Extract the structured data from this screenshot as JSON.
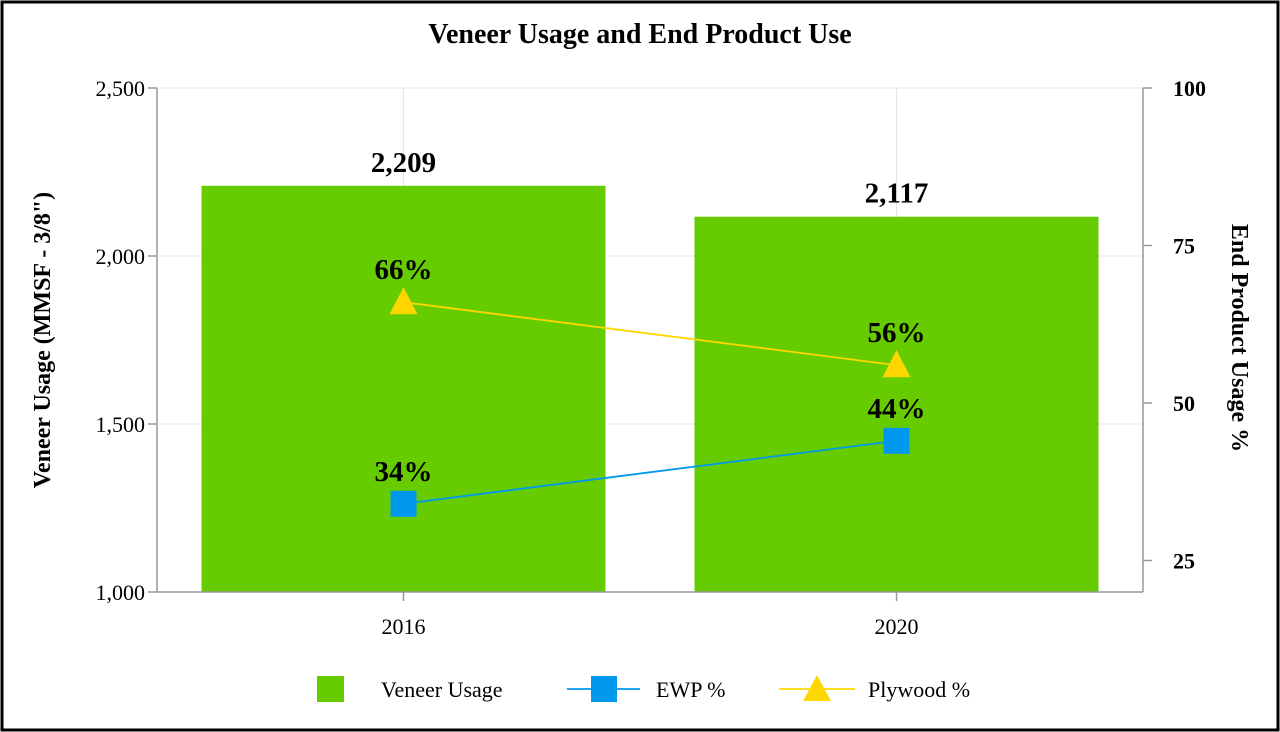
{
  "chart_data": {
    "type": "bar",
    "title": "Veneer Usage and End Product Use",
    "categories": [
      "2016",
      "2020"
    ],
    "y_left": {
      "label": "Veneer Usage (MMSF - 3/8\")",
      "range": [
        1000,
        2500
      ],
      "ticks": [
        1000,
        1500,
        2000,
        2500
      ],
      "tick_labels": [
        "1,000",
        "1,500",
        "2,000",
        "2,500"
      ]
    },
    "y_right": {
      "label": "End Product Usage %",
      "range": [
        20,
        100
      ],
      "ticks": [
        25,
        50,
        75,
        100
      ],
      "tick_labels": [
        "25",
        "50",
        "75",
        "100"
      ]
    },
    "grid": true,
    "legend_position": "bottom",
    "series": [
      {
        "name": "Veneer Usage",
        "kind": "bar",
        "axis": "left",
        "color": "#66cc00",
        "values": [
          2209,
          2117
        ],
        "data_labels": [
          "2,209",
          "2,117"
        ]
      },
      {
        "name": "EWP %",
        "kind": "line",
        "axis": "right",
        "marker": "square",
        "color": "#0099ee",
        "values": [
          34,
          44
        ],
        "data_labels": [
          "34%",
          "44%"
        ]
      },
      {
        "name": "Plywood %",
        "kind": "line",
        "axis": "right",
        "marker": "triangle",
        "color": "#ffd700",
        "values": [
          66,
          56
        ],
        "data_labels": [
          "66%",
          "56%"
        ]
      }
    ]
  }
}
